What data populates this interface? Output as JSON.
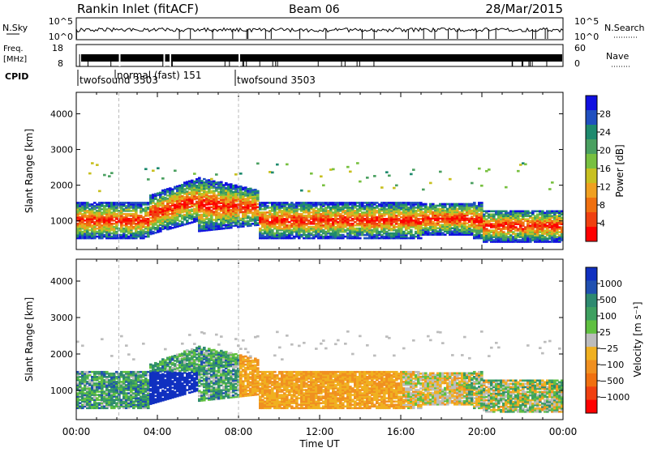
{
  "header": {
    "station": "Rankin Inlet (fitACF)",
    "beam": "Beam 06",
    "date": "28/Mar/2015"
  },
  "noise_panel": {
    "left_label": "N.Sky",
    "right_label": "N.Search",
    "left_ticks": [
      "10^5",
      "10^0"
    ],
    "right_ticks": [
      "10^5",
      "10^0"
    ]
  },
  "freq_panel": {
    "left_label_line1": "Freq.",
    "left_label_line2": "[MHz]",
    "right_label": "Nave",
    "left_ticks": [
      "18",
      "8"
    ],
    "right_ticks": [
      "60",
      "0"
    ]
  },
  "cpid": {
    "label": "CPID",
    "entries": [
      {
        "name": "twofsound 3503",
        "start_h": 0.0,
        "end_h": 2.1
      },
      {
        "name": "normal (fast) 151",
        "start_h": 2.1,
        "end_h": 8.0
      },
      {
        "name": "twofsound 3503",
        "start_h": 8.0,
        "end_h": 24.0
      }
    ]
  },
  "chart_data": [
    {
      "type": "heatmap",
      "name": "power",
      "ylabel": "Slant Range [km]",
      "ylim": [
        200,
        4600
      ],
      "yticks": [
        1000,
        2000,
        3000,
        4000
      ],
      "xlim": [
        0,
        24
      ],
      "colorbar": {
        "label": "Power [dB]",
        "ticks": [
          "4",
          "8",
          "12",
          "16",
          "20",
          "24",
          "28"
        ],
        "colors": [
          "#1010e0",
          "#2050c0",
          "#1e8a6e",
          "#4aa060",
          "#78c040",
          "#c8c020",
          "#f0a020",
          "#f07010",
          "#f04010",
          "#ff0000"
        ]
      }
    },
    {
      "type": "heatmap",
      "name": "velocity",
      "ylabel": "Slant Range [km]",
      "ylim": [
        200,
        4600
      ],
      "yticks": [
        1000,
        2000,
        3000,
        4000
      ],
      "xlim": [
        0,
        24
      ],
      "xlabel": "Time UT",
      "xtick_labels": [
        "00:00",
        "04:00",
        "08:00",
        "12:00",
        "16:00",
        "20:00",
        "00:00"
      ],
      "colorbar": {
        "label": "Velocity [m s⁻¹]",
        "ticks": [
          "1000",
          "500",
          "100",
          "25",
          "−25",
          "−100",
          "−500",
          "−1000"
        ],
        "colors": [
          "#1030c0",
          "#2050b0",
          "#2e8a70",
          "#3ea060",
          "#60c040",
          "#bcbcbc",
          "#f0b020",
          "#f09020",
          "#f07010",
          "#f04010",
          "#ff0000"
        ]
      }
    }
  ]
}
